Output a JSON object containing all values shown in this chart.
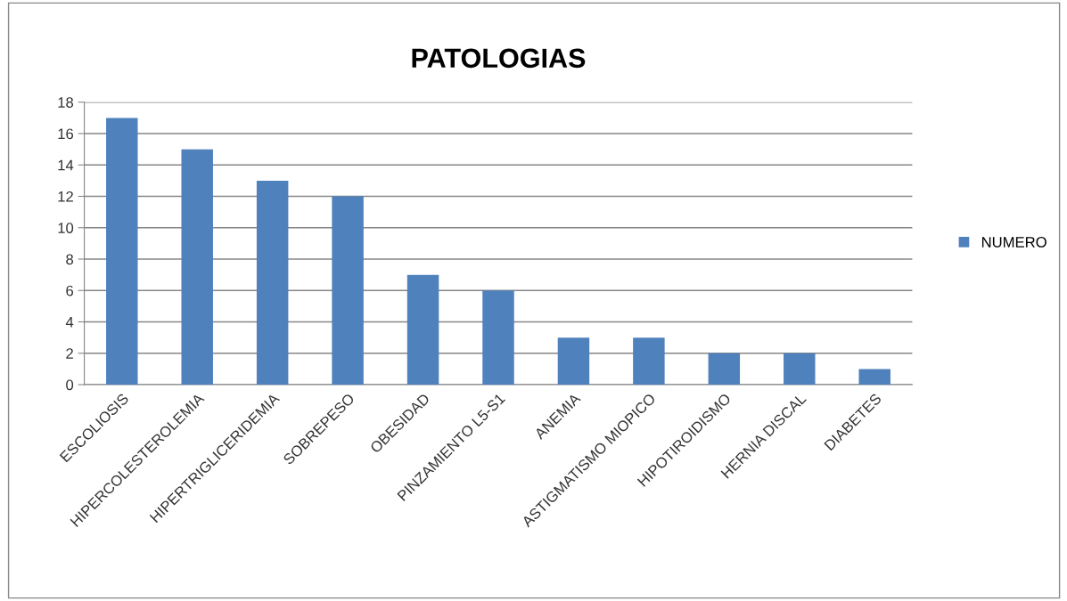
{
  "chart_data": {
    "type": "bar",
    "title": "PATOLOGIAS",
    "categories": [
      "ESCOLIOSIS",
      "HIPERCOLESTEROLEMIA",
      "HIPERTRIGLICERIDEMIA",
      "SOBREPESO",
      "OBESIDAD",
      "PINZAMIENTO L5-S1",
      "ANEMIA",
      "ASTIGMATISMO MIOPICO",
      "HIPOTIROIDISMO",
      "HERNIA DISCAL",
      "DIABETES"
    ],
    "series": [
      {
        "name": "NUMERO",
        "color": "#4f81bd",
        "values": [
          17,
          15,
          13,
          12,
          7,
          6,
          3,
          3,
          2,
          2,
          1
        ]
      }
    ],
    "ylim": [
      0,
      18
    ],
    "yticks": [
      0,
      2,
      4,
      6,
      8,
      10,
      12,
      14,
      16,
      18
    ],
    "grid": "y",
    "legend": "right"
  }
}
